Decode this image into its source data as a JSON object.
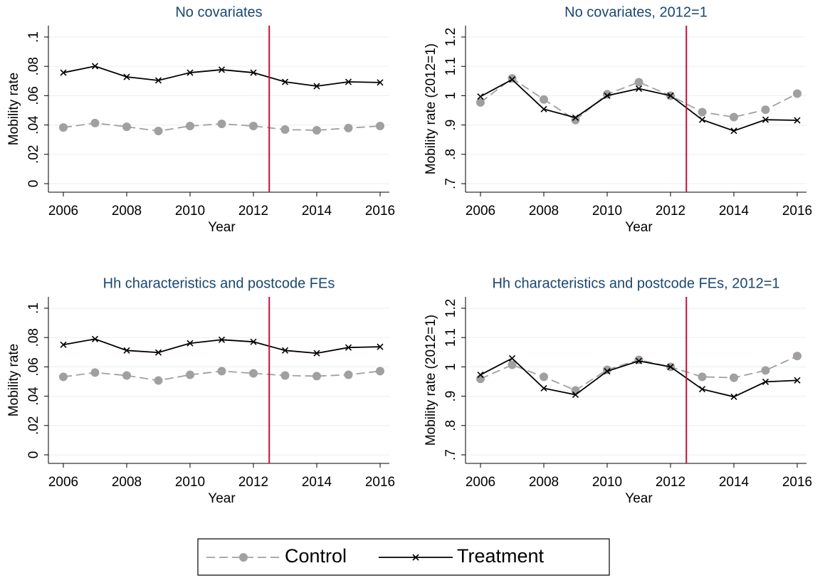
{
  "chart_data": [
    {
      "type": "line",
      "title": "No covariates",
      "xlabel": "Year",
      "ylabel": "Mobility rate",
      "x": [
        2006,
        2007,
        2008,
        2009,
        2010,
        2011,
        2012,
        2013,
        2014,
        2015,
        2016
      ],
      "xlim": [
        2006,
        2016
      ],
      "xticks": [
        2006,
        2008,
        2010,
        2012,
        2014,
        2016
      ],
      "ylim": [
        0,
        0.1
      ],
      "yticks": [
        0,
        {
          "value": 0.02,
          "label": ".02"
        },
        {
          "value": 0.04,
          "label": ".04"
        },
        {
          "value": 0.06,
          "label": ".06"
        },
        {
          "value": 0.08,
          "label": ".08"
        },
        {
          "value": 0.1,
          "label": ".1"
        }
      ],
      "grid": true,
      "vline": {
        "x": 2012.5,
        "color": "#c0103c"
      },
      "series": [
        {
          "name": "Control",
          "color": "#a0a0a0",
          "linestyle": "dashed",
          "marker": "circle",
          "values": [
            0.0383,
            0.0413,
            0.0388,
            0.0359,
            0.0393,
            0.0408,
            0.0393,
            0.0369,
            0.0364,
            0.0379,
            0.0393
          ]
        },
        {
          "name": "Treatment",
          "color": "#000000",
          "linestyle": "solid",
          "marker": "x",
          "values": [
            0.0757,
            0.0801,
            0.0728,
            0.0704,
            0.0757,
            0.0777,
            0.0757,
            0.0694,
            0.0665,
            0.0694,
            0.069
          ]
        }
      ]
    },
    {
      "type": "line",
      "title": "No covariates, 2012=1",
      "xlabel": "Year",
      "ylabel": "Mobility rate (2012=1)",
      "x": [
        2006,
        2007,
        2008,
        2009,
        2010,
        2011,
        2012,
        2013,
        2014,
        2015,
        2016
      ],
      "xlim": [
        2006,
        2016
      ],
      "xticks": [
        2006,
        2008,
        2010,
        2012,
        2014,
        2016
      ],
      "ylim": [
        0.7,
        1.2
      ],
      "yticks": [
        {
          "value": 0.7,
          "label": ".7"
        },
        {
          "value": 0.8,
          "label": ".8"
        },
        {
          "value": 0.9,
          "label": ".9"
        },
        1,
        1.1,
        1.2
      ],
      "grid": true,
      "vline": {
        "x": 2012.5,
        "color": "#c0103c"
      },
      "series": [
        {
          "name": "Control",
          "color": "#a0a0a0",
          "linestyle": "dashed",
          "marker": "circle",
          "values": [
            0.977,
            1.059,
            0.987,
            0.917,
            1.005,
            1.046,
            1.0,
            0.944,
            0.927,
            0.952,
            1.007
          ]
        },
        {
          "name": "Treatment",
          "color": "#000000",
          "linestyle": "solid",
          "marker": "x",
          "values": [
            0.997,
            1.055,
            0.954,
            0.925,
            1.0,
            1.024,
            1.0,
            0.918,
            0.88,
            0.918,
            0.916
          ]
        }
      ]
    },
    {
      "type": "line",
      "title": "Hh characteristics and postcode FEs",
      "xlabel": "Year",
      "ylabel": "Mobility rate",
      "x": [
        2006,
        2007,
        2008,
        2009,
        2010,
        2011,
        2012,
        2013,
        2014,
        2015,
        2016
      ],
      "xlim": [
        2006,
        2016
      ],
      "xticks": [
        2006,
        2008,
        2010,
        2012,
        2014,
        2016
      ],
      "ylim": [
        0,
        0.1
      ],
      "yticks": [
        0,
        {
          "value": 0.02,
          "label": ".02"
        },
        {
          "value": 0.04,
          "label": ".04"
        },
        {
          "value": 0.06,
          "label": ".06"
        },
        {
          "value": 0.08,
          "label": ".08"
        },
        {
          "value": 0.1,
          "label": ".1"
        }
      ],
      "grid": true,
      "vline": {
        "x": 2012.5,
        "color": "#c0103c"
      },
      "series": [
        {
          "name": "Control",
          "color": "#a0a0a0",
          "linestyle": "dashed",
          "marker": "circle",
          "values": [
            0.0532,
            0.0561,
            0.0541,
            0.0507,
            0.0546,
            0.0571,
            0.0556,
            0.0541,
            0.0537,
            0.0546,
            0.0571
          ]
        },
        {
          "name": "Treatment",
          "color": "#000000",
          "linestyle": "solid",
          "marker": "x",
          "values": [
            0.0751,
            0.079,
            0.0712,
            0.0698,
            0.0761,
            0.0785,
            0.0771,
            0.0712,
            0.0693,
            0.0732,
            0.0737
          ]
        }
      ]
    },
    {
      "type": "line",
      "title": "Hh characteristics and postcode FEs, 2012=1",
      "xlabel": "Year",
      "ylabel": "Mobility rate (2012=1)",
      "x": [
        2006,
        2007,
        2008,
        2009,
        2010,
        2011,
        2012,
        2013,
        2014,
        2015,
        2016
      ],
      "xlim": [
        2006,
        2016
      ],
      "xticks": [
        2006,
        2008,
        2010,
        2012,
        2014,
        2016
      ],
      "ylim": [
        0.7,
        1.2
      ],
      "yticks": [
        {
          "value": 0.7,
          "label": ".7"
        },
        {
          "value": 0.8,
          "label": ".8"
        },
        {
          "value": 0.9,
          "label": ".9"
        },
        1,
        1.1,
        1.2
      ],
      "grid": true,
      "vline": {
        "x": 2012.5,
        "color": "#c0103c"
      },
      "series": [
        {
          "name": "Control",
          "color": "#a0a0a0",
          "linestyle": "dashed",
          "marker": "circle",
          "values": [
            0.959,
            1.007,
            0.966,
            0.92,
            0.99,
            1.024,
            1.0,
            0.966,
            0.963,
            0.988,
            1.037
          ]
        },
        {
          "name": "Treatment",
          "color": "#000000",
          "linestyle": "solid",
          "marker": "x",
          "values": [
            0.973,
            1.029,
            0.927,
            0.905,
            0.985,
            1.02,
            1.0,
            0.924,
            0.898,
            0.949,
            0.954
          ]
        }
      ]
    }
  ]
}
